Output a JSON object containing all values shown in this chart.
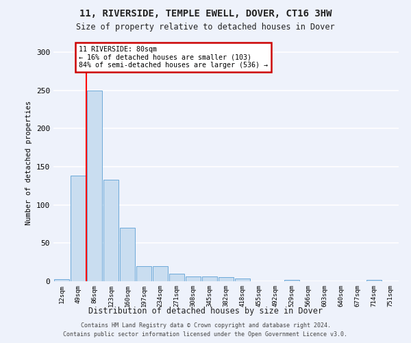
{
  "title": "11, RIVERSIDE, TEMPLE EWELL, DOVER, CT16 3HW",
  "subtitle": "Size of property relative to detached houses in Dover",
  "xlabel": "Distribution of detached houses by size in Dover",
  "ylabel": "Number of detached properties",
  "categories": [
    "12sqm",
    "49sqm",
    "86sqm",
    "123sqm",
    "160sqm",
    "197sqm",
    "234sqm",
    "271sqm",
    "308sqm",
    "345sqm",
    "382sqm",
    "418sqm",
    "455sqm",
    "492sqm",
    "529sqm",
    "566sqm",
    "603sqm",
    "640sqm",
    "677sqm",
    "714sqm",
    "751sqm"
  ],
  "values": [
    3,
    138,
    250,
    133,
    70,
    20,
    20,
    10,
    6,
    6,
    5,
    4,
    0,
    0,
    2,
    0,
    0,
    0,
    0,
    2,
    0
  ],
  "bar_color": "#c9ddf0",
  "bar_edge_color": "#5a9fd4",
  "red_line_x": 1.5,
  "annotation_text": "11 RIVERSIDE: 80sqm\n← 16% of detached houses are smaller (103)\n84% of semi-detached houses are larger (536) →",
  "annotation_box_color": "#ffffff",
  "annotation_box_edge_color": "#cc0000",
  "background_color": "#eef2fb",
  "grid_color": "#ffffff",
  "ylim": [
    0,
    310
  ],
  "yticks": [
    0,
    50,
    100,
    150,
    200,
    250,
    300
  ],
  "footer_line1": "Contains HM Land Registry data © Crown copyright and database right 2024.",
  "footer_line2": "Contains public sector information licensed under the Open Government Licence v3.0."
}
